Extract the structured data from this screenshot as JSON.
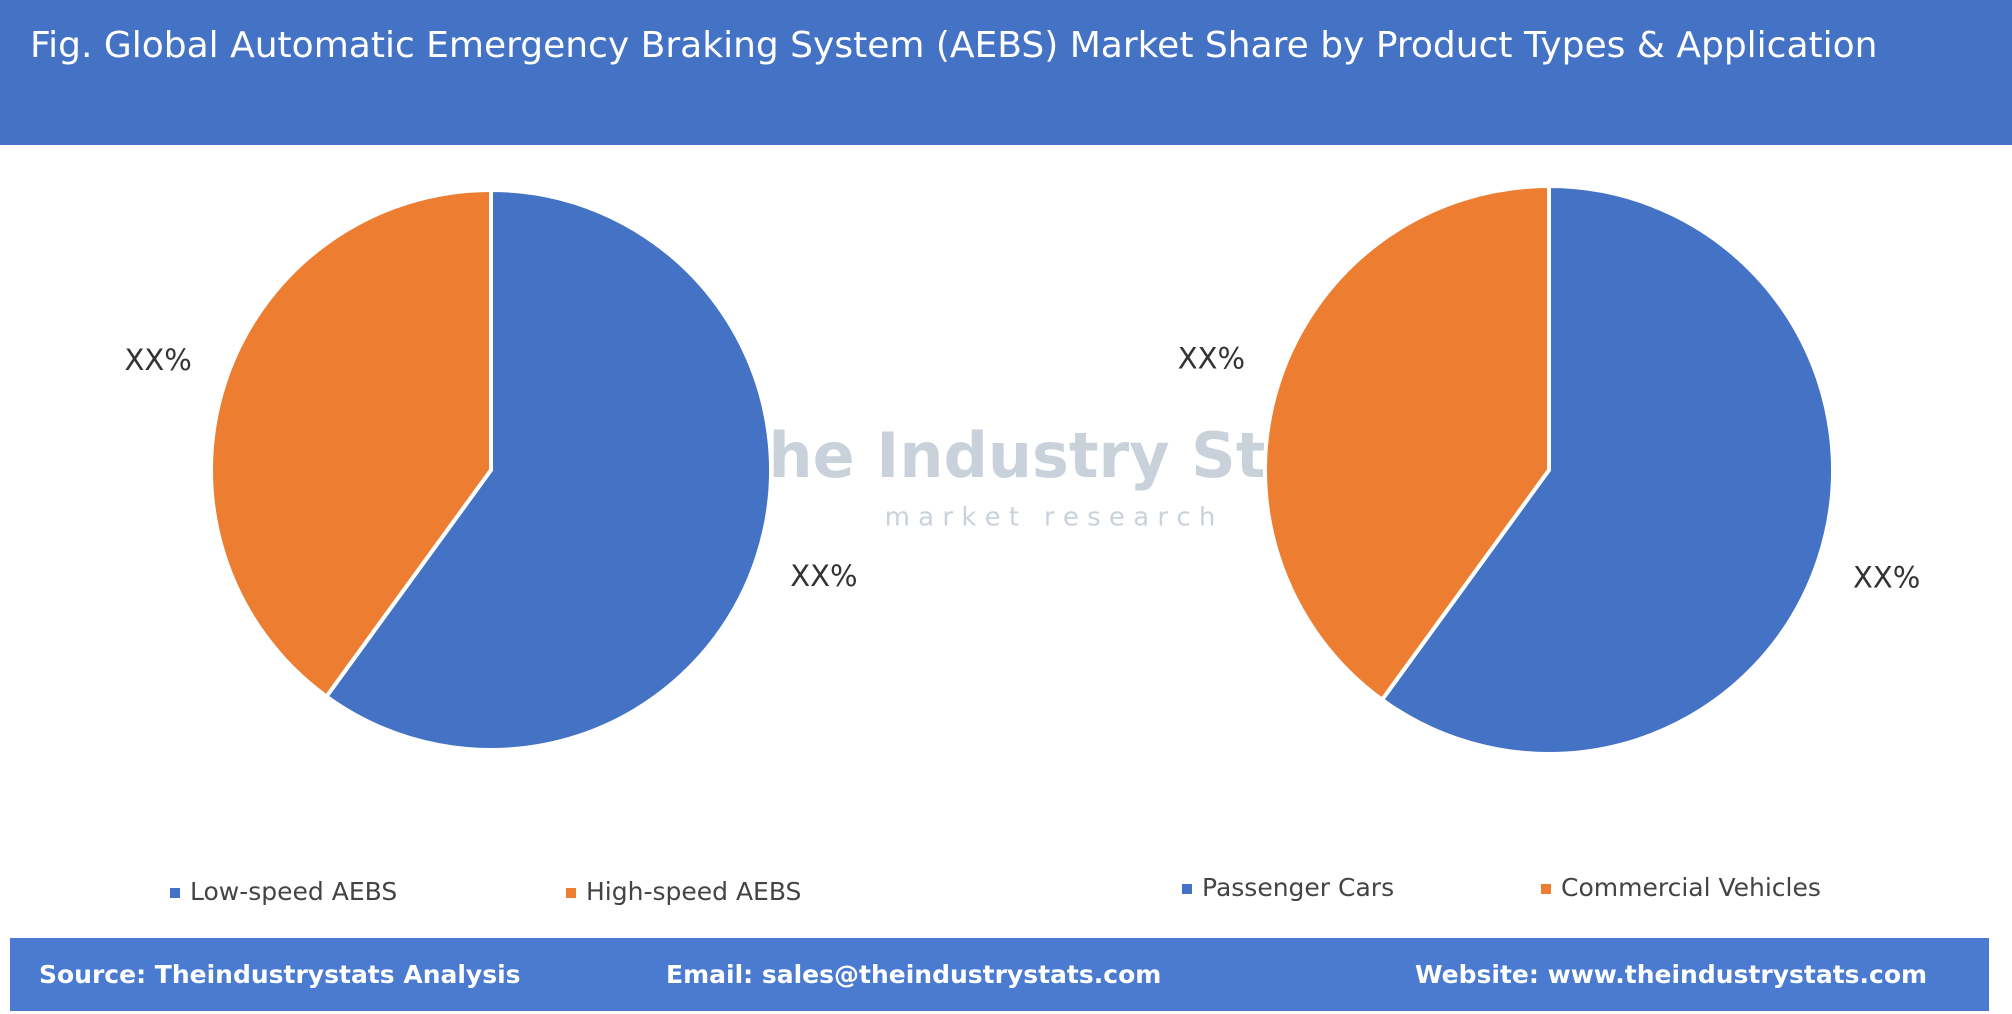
{
  "header": {
    "title": "Fig. Global Automatic Emergency Braking System (AEBS) Market Share by Product Types & Application"
  },
  "watermark": {
    "name": "The Industry Stats",
    "tagline": "m a r k e t   r e s e a r c h"
  },
  "chart_data": [
    {
      "type": "pie",
      "categories": [
        "Low-speed AEBS",
        "High-speed AEBS"
      ],
      "values": [
        60,
        40
      ],
      "value_labels": [
        "XX%",
        "XX%"
      ],
      "colors": [
        "#4472c4",
        "#ed7d31"
      ]
    },
    {
      "type": "pie",
      "categories": [
        "Passenger Cars",
        "Commercial Vehicles"
      ],
      "values": [
        60,
        40
      ],
      "value_labels": [
        "XX%",
        "XX%"
      ],
      "colors": [
        "#4472c4",
        "#ed7d31"
      ]
    }
  ],
  "footer": {
    "source": "Source: Theindustrystats Analysis",
    "email": "Email: sales@theindustrystats.com",
    "website": "Website: www.theindustrystats.com"
  }
}
